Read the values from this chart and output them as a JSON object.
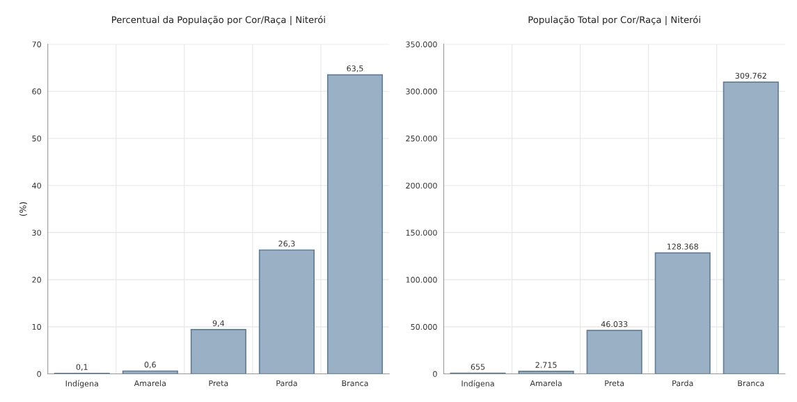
{
  "chart_data": [
    {
      "type": "bar",
      "title": "Percentual da População por Cor/Raça | Niterói",
      "ylabel": "(%)",
      "categories": [
        "Indígena",
        "Amarela",
        "Preta",
        "Parda",
        "Branca"
      ],
      "values": [
        0.1,
        0.6,
        9.4,
        26.3,
        63.5
      ],
      "value_labels": [
        "0,1",
        "0,6",
        "9,4",
        "26,3",
        "63,5"
      ],
      "color": "#9ab0c4",
      "ylim": [
        0,
        70
      ],
      "yticks": [
        0,
        10,
        20,
        30,
        40,
        50,
        60,
        70
      ],
      "grid": true
    },
    {
      "type": "bar",
      "title": "População Total por Cor/Raça | Niterói",
      "categories": [
        "Indígena",
        "Amarela",
        "Preta",
        "Parda",
        "Branca"
      ],
      "values": [
        655,
        2715,
        46033,
        128368,
        309762
      ],
      "value_labels": [
        "655",
        "2.715",
        "46.033",
        "128.368",
        "309.762"
      ],
      "color": "#9ab0c4",
      "ylim": [
        0,
        350000
      ],
      "yticks": [
        0,
        {
          "value": 50000,
          "label": "50.000"
        },
        {
          "value": 100000,
          "label": "100.000"
        },
        {
          "value": 150000,
          "label": "150.000"
        },
        {
          "value": 200000,
          "label": "200.000"
        },
        {
          "value": 250000,
          "label": "250.000"
        },
        {
          "value": 300000,
          "label": "300.000"
        },
        {
          "value": 350000,
          "label": "350.000"
        }
      ],
      "grid": true
    }
  ]
}
